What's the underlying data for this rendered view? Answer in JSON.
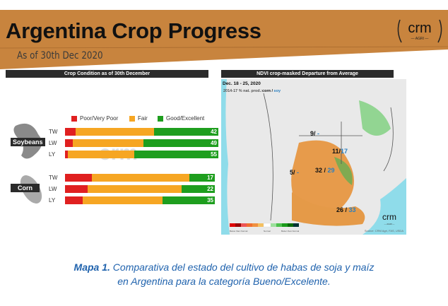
{
  "header": {
    "title": "Argentina Crop Progress",
    "subtitle": "As of 30th Dec 2020",
    "logo": "crm AGRI"
  },
  "chart_data": {
    "type": "bar",
    "stacked": true,
    "orientation": "horizontal",
    "title": "Crop Condition as of 30th December",
    "legend": [
      "Poor/Very Poor",
      "Fair",
      "Good/Excellent"
    ],
    "colors": {
      "Poor/Very Poor": "#e02020",
      "Fair": "#f6a623",
      "Good/Excellent": "#1e9e1e"
    },
    "groups": [
      {
        "crop": "Soybeans",
        "rows": [
          {
            "label": "TW",
            "poor": 7,
            "fair": 51,
            "good": 42
          },
          {
            "label": "LW",
            "poor": 5,
            "fair": 46,
            "good": 49
          },
          {
            "label": "LY",
            "poor": 2,
            "fair": 43,
            "good": 55
          }
        ]
      },
      {
        "crop": "Corn",
        "rows": [
          {
            "label": "TW",
            "poor": 18,
            "fair": 65,
            "good": 17
          },
          {
            "label": "LW",
            "poor": 15,
            "fair": 63,
            "good": 22
          },
          {
            "label": "LY",
            "poor": 12,
            "fair": 53,
            "good": 35
          }
        ]
      }
    ],
    "watermark": "crm AGRI"
  },
  "map": {
    "title": "NDVI crop-masked Departure from Average",
    "dates": "Dec. 18 - 25, 2020",
    "subtitle_prefix": "2014-17 % nat. prod.:",
    "subtitle_corn": "corn",
    "subtitle_sep": " / ",
    "subtitle_soy": "soy",
    "regions": [
      {
        "corn": "9",
        "soy": "-"
      },
      {
        "corn": "11",
        "soy": "17"
      },
      {
        "corn": "5",
        "soy": "-"
      },
      {
        "corn": "32",
        "soy": "29"
      },
      {
        "corn": "26",
        "soy": "33"
      }
    ],
    "scale_low": "Below than Normal",
    "scale_mid": "Normal",
    "scale_high": "Better than Normal",
    "source": "Source: CRM Agri, FAS, USDA",
    "logo": "crm AGRI"
  },
  "caption": {
    "label": "Mapa 1.",
    "text": " Comparativa del estado del cultivo de habas de soja y maíz en Argentina para la categoría Bueno/Excelente."
  }
}
